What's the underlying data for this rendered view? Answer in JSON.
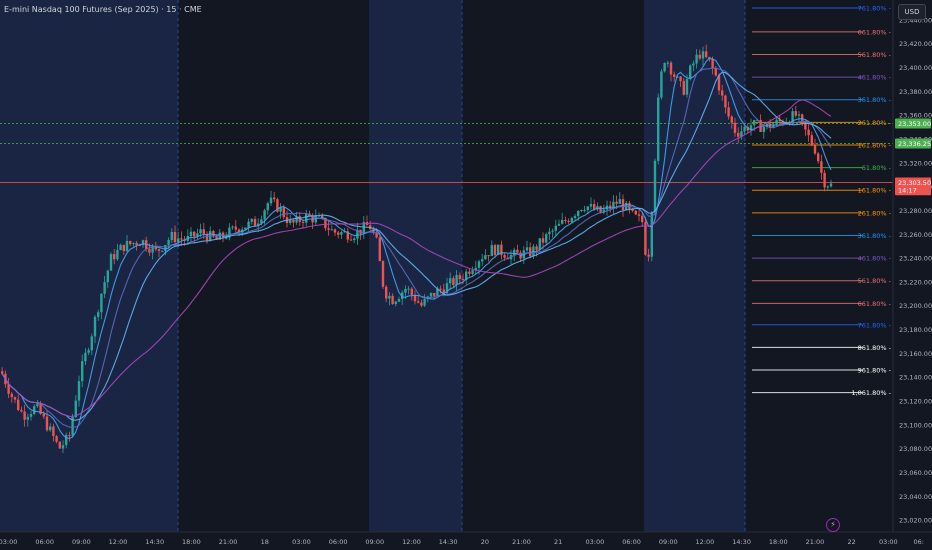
{
  "header": {
    "title": "E-mini Nasdaq 100 Futures (Sep 2025) · 15 · CME",
    "currency": "USD"
  },
  "colors": {
    "background": "#131722",
    "session_band": "#192542",
    "up": "#26a69a",
    "down": "#ef5350",
    "grid_text": "#b2b5be"
  },
  "chart_data": {
    "type": "candlestick",
    "y_ticks": [
      "23,440.00",
      "23,420.00",
      "23,400.00",
      "23,380.00",
      "23,360.00",
      "23,340.00",
      "23,320.00",
      "23,300.00",
      "23,280.00",
      "23,260.00",
      "23,240.00",
      "23,220.00",
      "23,200.00",
      "23,180.00",
      "23,160.00",
      "23,140.00",
      "23,120.00",
      "23,100.00",
      "23,080.00",
      "23,060.00",
      "23,040.00",
      "23,020.00"
    ],
    "y_range": [
      23010,
      23450
    ],
    "x_ticks": [
      "03:00",
      "06:00",
      "09:00",
      "12:00",
      "14:30",
      "18:00",
      "21:00",
      "18",
      "03:00",
      "06:00",
      "09:00",
      "12:00",
      "14:30",
      "20",
      "21:00",
      "21",
      "03:00",
      "06:00",
      "09:00",
      "12:00",
      "14:30",
      "18:00",
      "21:00",
      "22",
      "03:00",
      "06:"
    ],
    "price_badges": [
      {
        "label": "23,353.00",
        "value": 23353,
        "color": "#4caf50"
      },
      {
        "label": "23,336.25",
        "value": 23336.25,
        "color": "#4caf50"
      },
      {
        "label": "23,303.50",
        "value": 23303.5,
        "color": "#ef5350"
      },
      {
        "label": "14:17",
        "value": 23297,
        "color": "#ef5350"
      }
    ],
    "horizontal_lines": [
      {
        "value": 23353,
        "style": "dotted",
        "color": "#4caf50"
      },
      {
        "value": 23336.25,
        "style": "dotted",
        "color": "#4caf50"
      },
      {
        "value": 23303.5,
        "style": "solid",
        "color": "#ef5350"
      }
    ],
    "fib_levels": [
      {
        "label": "761.80%",
        "value": 23450,
        "color": "#2962ff"
      },
      {
        "label": "661.80%",
        "value": 23430,
        "color": "#e57373"
      },
      {
        "label": "561.80%",
        "value": 23411,
        "color": "#e57373"
      },
      {
        "label": "461.80%",
        "value": 23392,
        "color": "#7e57c2"
      },
      {
        "label": "361.80%",
        "value": 23373,
        "color": "#2196f3"
      },
      {
        "label": "261.80%",
        "value": 23354,
        "color": "#ff9800"
      },
      {
        "label": "161.80%",
        "value": 23335,
        "color": "#ff9800"
      },
      {
        "label": "61.80%",
        "value": 23316,
        "color": "#4caf50"
      },
      {
        "label": "161.80%",
        "value": 23297,
        "color": "#ff9800"
      },
      {
        "label": "261.80%",
        "value": 23278,
        "color": "#ff9800"
      },
      {
        "label": "361.80%",
        "value": 23259,
        "color": "#2196f3"
      },
      {
        "label": "461.80%",
        "value": 23240,
        "color": "#7e57c2"
      },
      {
        "label": "561.80%",
        "value": 23221,
        "color": "#e57373"
      },
      {
        "label": "661.80%",
        "value": 23202,
        "color": "#e57373"
      },
      {
        "label": "761.80%",
        "value": 23184,
        "color": "#2962ff"
      },
      {
        "label": "861.80%",
        "value": 23165,
        "color": "#ffffff"
      },
      {
        "label": "961.80%",
        "value": 23146,
        "color": "#ffffff"
      },
      {
        "label": "1,061.80%",
        "value": 23127,
        "color": "#ffffff"
      }
    ],
    "path": [
      [
        0,
        23145
      ],
      [
        10,
        23125
      ],
      [
        22,
        23108
      ],
      [
        35,
        23115
      ],
      [
        47,
        23098
      ],
      [
        58,
        23080
      ],
      [
        68,
        23090
      ],
      [
        78,
        23140
      ],
      [
        90,
        23175
      ],
      [
        100,
        23210
      ],
      [
        110,
        23240
      ],
      [
        122,
        23250
      ],
      [
        140,
        23255
      ],
      [
        155,
        23245
      ],
      [
        170,
        23258
      ],
      [
        185,
        23255
      ],
      [
        200,
        23262
      ],
      [
        215,
        23255
      ],
      [
        235,
        23265
      ],
      [
        255,
        23270
      ],
      [
        268,
        23288
      ],
      [
        278,
        23282
      ],
      [
        290,
        23268
      ],
      [
        305,
        23275
      ],
      [
        318,
        23272
      ],
      [
        332,
        23262
      ],
      [
        352,
        23260
      ],
      [
        368,
        23268
      ],
      [
        375,
        23255
      ],
      [
        383,
        23212
      ],
      [
        392,
        23205
      ],
      [
        405,
        23215
      ],
      [
        420,
        23200
      ],
      [
        432,
        23210
      ],
      [
        448,
        23218
      ],
      [
        462,
        23225
      ],
      [
        478,
        23240
      ],
      [
        492,
        23248
      ],
      [
        510,
        23242
      ],
      [
        530,
        23245
      ],
      [
        548,
        23260
      ],
      [
        565,
        23272
      ],
      [
        582,
        23285
      ],
      [
        600,
        23278
      ],
      [
        618,
        23288
      ],
      [
        632,
        23275
      ],
      [
        642,
        23270
      ],
      [
        646,
        23228
      ],
      [
        652,
        23300
      ],
      [
        658,
        23385
      ],
      [
        664,
        23410
      ],
      [
        672,
        23395
      ],
      [
        682,
        23380
      ],
      [
        690,
        23400
      ],
      [
        698,
        23412
      ],
      [
        708,
        23405
      ],
      [
        716,
        23390
      ],
      [
        724,
        23365
      ],
      [
        735,
        23345
      ],
      [
        750,
        23352
      ],
      [
        765,
        23350
      ],
      [
        780,
        23355
      ],
      [
        795,
        23360
      ],
      [
        805,
        23345
      ],
      [
        815,
        23330
      ],
      [
        822,
        23305
      ],
      [
        832,
        23300
      ]
    ],
    "ma_lines": [
      {
        "name": "ma1",
        "color": "#42a5f5",
        "lag": 6
      },
      {
        "name": "ma2",
        "color": "#5c6bc0",
        "lag": 12
      },
      {
        "name": "ma3",
        "color": "#64b5f6",
        "lag": 20
      },
      {
        "name": "ma4",
        "color": "#ab47bc",
        "lag": 45
      }
    ]
  }
}
